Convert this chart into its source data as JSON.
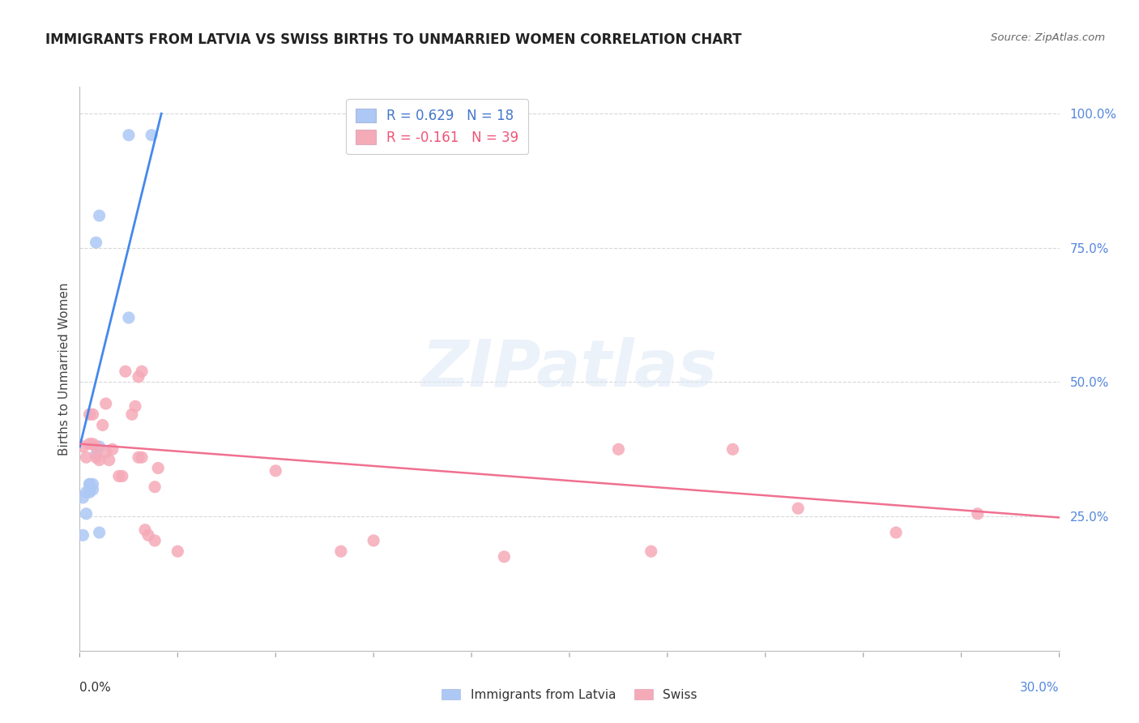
{
  "title": "IMMIGRANTS FROM LATVIA VS SWISS BIRTHS TO UNMARRIED WOMEN CORRELATION CHART",
  "source": "Source: ZipAtlas.com",
  "ylabel": "Births to Unmarried Women",
  "legend_label1": "Immigrants from Latvia",
  "legend_label2": "Swiss",
  "r1": 0.629,
  "n1": 18,
  "r2": -0.161,
  "n2": 39,
  "blue_color": "#adc8f5",
  "pink_color": "#f5aab8",
  "blue_line_color": "#4488ee",
  "pink_line_color": "#f07090",
  "blue_scatter_x": [
    0.001,
    0.001,
    0.002,
    0.002,
    0.003,
    0.003,
    0.003,
    0.003,
    0.004,
    0.004,
    0.005,
    0.005,
    0.006,
    0.006,
    0.006,
    0.015,
    0.015,
    0.022
  ],
  "blue_scatter_y": [
    0.285,
    0.215,
    0.295,
    0.255,
    0.295,
    0.3,
    0.31,
    0.31,
    0.3,
    0.31,
    0.365,
    0.76,
    0.81,
    0.38,
    0.22,
    0.96,
    0.62,
    0.96
  ],
  "pink_scatter_x": [
    0.001,
    0.002,
    0.003,
    0.003,
    0.004,
    0.004,
    0.005,
    0.005,
    0.006,
    0.007,
    0.008,
    0.008,
    0.009,
    0.01,
    0.012,
    0.013,
    0.014,
    0.016,
    0.017,
    0.018,
    0.018,
    0.019,
    0.019,
    0.02,
    0.021,
    0.023,
    0.023,
    0.024,
    0.03,
    0.06,
    0.08,
    0.09,
    0.13,
    0.165,
    0.175,
    0.2,
    0.22,
    0.25,
    0.275
  ],
  "pink_scatter_y": [
    0.38,
    0.36,
    0.385,
    0.44,
    0.385,
    0.44,
    0.36,
    0.38,
    0.355,
    0.42,
    0.46,
    0.37,
    0.355,
    0.375,
    0.325,
    0.325,
    0.52,
    0.44,
    0.455,
    0.51,
    0.36,
    0.52,
    0.36,
    0.225,
    0.215,
    0.305,
    0.205,
    0.34,
    0.185,
    0.335,
    0.185,
    0.205,
    0.175,
    0.375,
    0.185,
    0.375,
    0.265,
    0.22,
    0.255
  ],
  "xmin": 0.0,
  "xmax": 0.3,
  "ymin": 0.0,
  "ymax": 1.05,
  "right_ytick_vals": [
    0.25,
    0.5,
    0.75,
    1.0
  ],
  "right_yticklabels": [
    "25.0%",
    "50.0%",
    "75.0%",
    "100.0%"
  ],
  "watermark": "ZIPatlas",
  "background_color": "#ffffff",
  "grid_color": "#d8d8d8",
  "blue_line_x0": 0.0,
  "blue_line_y0": 0.38,
  "blue_line_x1": 0.025,
  "blue_line_y1": 1.0,
  "pink_line_x0": 0.0,
  "pink_line_y0": 0.385,
  "pink_line_x1": 0.3,
  "pink_line_y1": 0.248
}
